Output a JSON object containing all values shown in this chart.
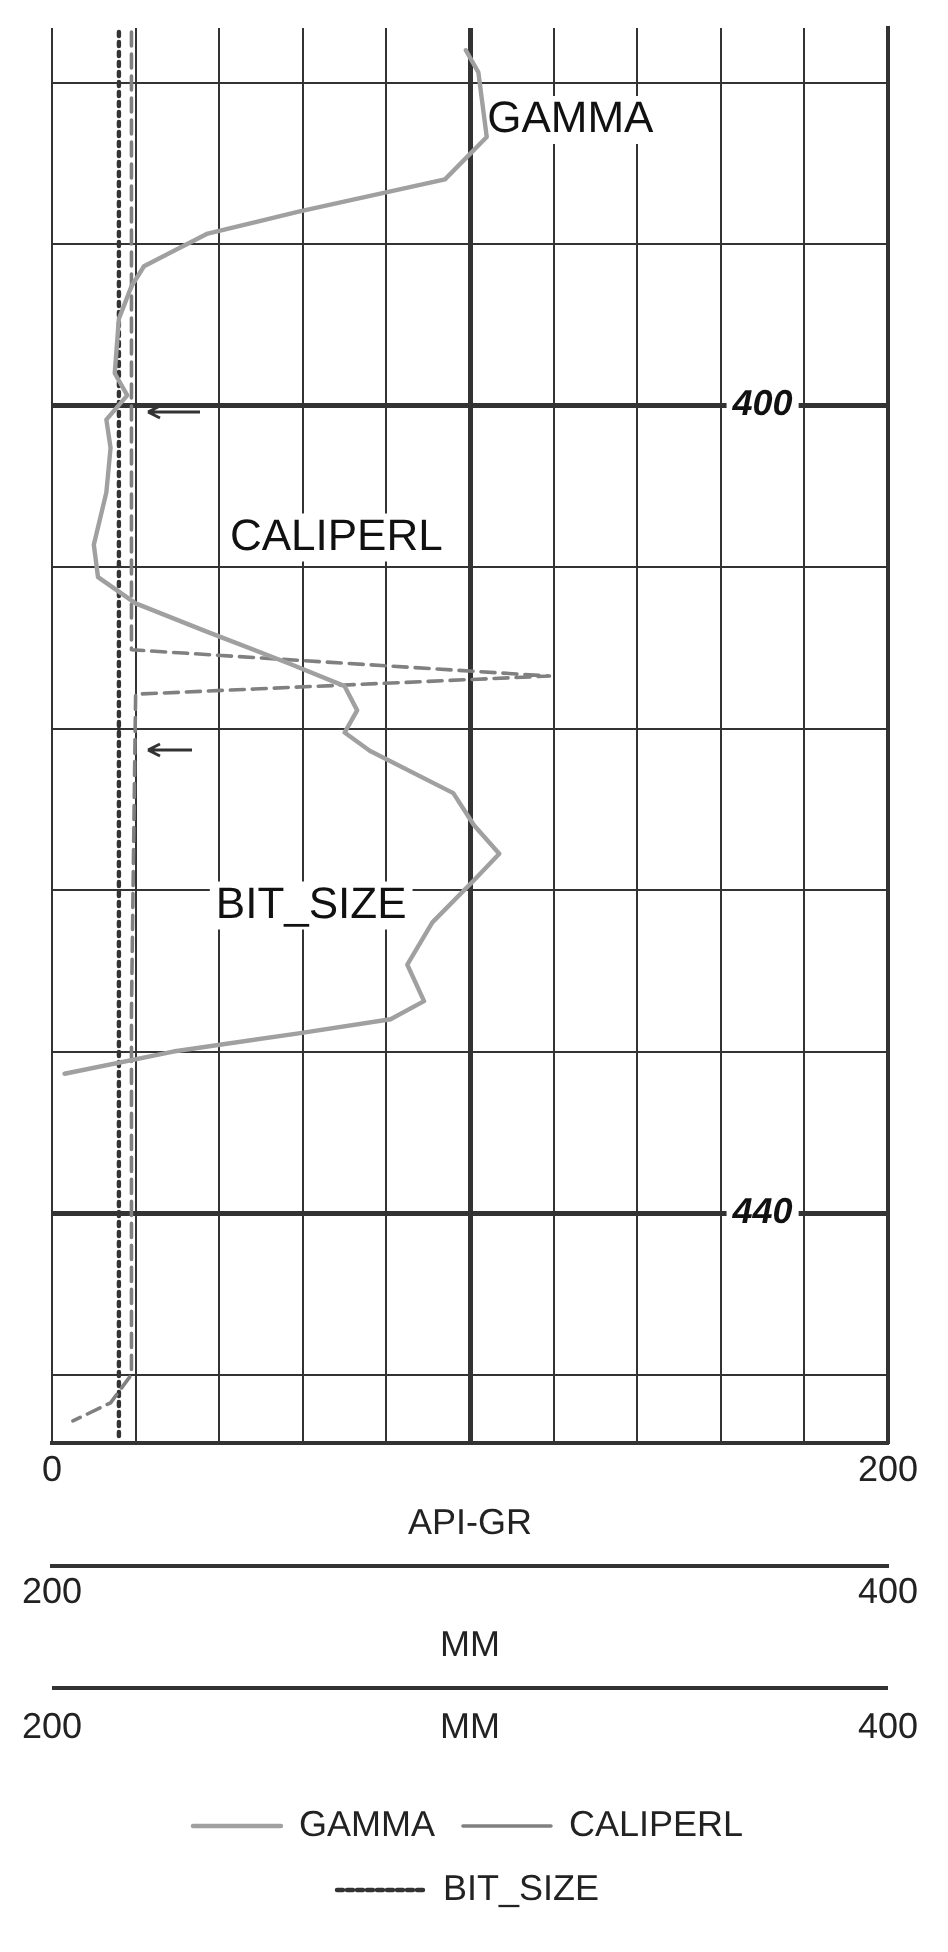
{
  "chart_data": {
    "type": "line",
    "orientation": "horizontal",
    "xlabel": "API-GR",
    "x2label": "MM",
    "xlim": [
      0,
      200
    ],
    "xticks": [
      0,
      {
        "value": 20,
        "label": null
      },
      {
        "value": 40,
        "label": null
      },
      {
        "value": 60,
        "label": null
      },
      {
        "value": 80,
        "label": null
      },
      {
        "value": 100,
        "label": null
      },
      {
        "value": 120,
        "label": null
      },
      {
        "value": 140,
        "label": null
      },
      {
        "value": 160,
        "label": null
      },
      {
        "value": 180,
        "label": null
      },
      200
    ],
    "x2lim": [
      200,
      400
    ],
    "x2ticks": [
      200,
      400
    ],
    "ylim": [
      451.4,
      381.3
    ],
    "yticks": [
      {
        "value": 384,
        "label": null
      },
      {
        "value": 392,
        "label": null
      },
      400,
      {
        "value": 408,
        "label": null
      },
      {
        "value": 416,
        "label": null
      },
      {
        "value": 424,
        "label": null
      },
      {
        "value": 432,
        "label": null
      },
      440,
      {
        "value": 448,
        "label": null
      }
    ],
    "grid": true,
    "legend": "bottom",
    "annotations": [
      "200",
      "MM",
      "400"
    ],
    "series": [
      {
        "name": "GAMMA",
        "color": "#a0a0a0",
        "line_style": "solid",
        "x": [
          382.4,
          383.5,
          386.7,
          388.8,
          390.4,
          391.5,
          393.1,
          394.1,
          395.7,
          398.4,
          399.5,
          400.7,
          402.1,
          404.3,
          406.9,
          408.5,
          409.8,
          411.2,
          412.8,
          413.9,
          415.1,
          416.2,
          417.1,
          419.2,
          420.8,
          422.2,
          423.5,
          425.6,
          427.7,
          429.5,
          430.4,
          431.1,
          432.0,
          433.1
        ],
        "values": [
          99,
          102,
          104,
          94,
          59,
          37,
          22,
          19,
          16,
          15,
          18,
          13,
          14,
          13,
          10,
          11,
          20,
          37,
          57,
          70,
          73,
          70,
          76,
          96,
          101,
          107,
          101,
          91,
          85,
          89,
          81,
          59,
          29,
          3
        ]
      },
      {
        "name": "CALIPERL",
        "color": "#808080",
        "line_style": "dashed",
        "axis": "x2",
        "x": [
          381.5,
          400,
          412.1,
          413.4,
          414.3,
          430,
          448,
          449.4,
          450.3
        ],
        "values": [
          219,
          219,
          219,
          319,
          220,
          219,
          219,
          214,
          205
        ]
      },
      {
        "name": "BIT_SIZE",
        "color": "#333333",
        "line_style": "dotted",
        "axis": "x2",
        "x": [
          381.5,
          451.3
        ],
        "values": [
          216,
          216
        ]
      }
    ]
  }
}
